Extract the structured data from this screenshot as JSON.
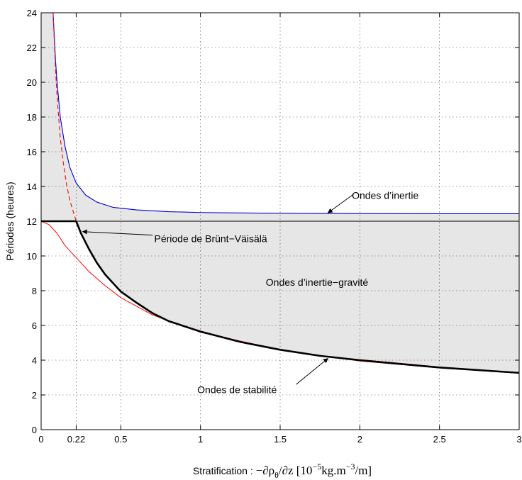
{
  "chart_data": {
    "type": "line",
    "xlabel_prefix": "Stratification : ",
    "xlabel_expr": "−∂ρ",
    "xlabel_sub": "θ",
    "xlabel_expr2": "/∂z  [10",
    "xlabel_sup1": "−5",
    "xlabel_mid": "kg.m",
    "xlabel_sup2": "−3",
    "xlabel_end": "/m]",
    "ylabel": "Périodes (heures)",
    "xlim": [
      0,
      3
    ],
    "ylim": [
      0,
      24
    ],
    "grid": true,
    "xticks": [
      {
        "value": 0,
        "label": "0"
      },
      {
        "value": 0.22,
        "label": "0.22"
      },
      {
        "value": 0.5,
        "label": "0.5"
      },
      {
        "value": 1,
        "label": "1"
      },
      {
        "value": 1.5,
        "label": "1.5"
      },
      {
        "value": 2,
        "label": "2"
      },
      {
        "value": 2.5,
        "label": "2.5"
      },
      {
        "value": 3,
        "label": "3"
      }
    ],
    "yticks": [
      {
        "value": 0,
        "label": "0"
      },
      {
        "value": 2,
        "label": "2"
      },
      {
        "value": 4,
        "label": "4"
      },
      {
        "value": 6,
        "label": "6"
      },
      {
        "value": 8,
        "label": "8"
      },
      {
        "value": 10,
        "label": "10"
      },
      {
        "value": 12,
        "label": "12"
      },
      {
        "value": 14,
        "label": "14"
      },
      {
        "value": 16,
        "label": "16"
      },
      {
        "value": 18,
        "label": "18"
      },
      {
        "value": 20,
        "label": "20"
      },
      {
        "value": 22,
        "label": "22"
      },
      {
        "value": 24,
        "label": "24"
      }
    ],
    "series": [
      {
        "style": "blue-solid",
        "color": "#0000cc",
        "x": [
          0.075,
          0.09,
          0.1,
          0.12,
          0.15,
          0.18,
          0.22,
          0.28,
          0.35,
          0.45,
          0.6,
          0.8,
          1.0,
          1.3,
          1.6,
          2.0,
          2.5,
          3.0
        ],
        "y": [
          24.0,
          21.3,
          20.0,
          18.0,
          16.3,
          15.1,
          14.2,
          13.5,
          13.1,
          12.8,
          12.65,
          12.55,
          12.5,
          12.47,
          12.45,
          12.44,
          12.43,
          12.43
        ]
      },
      {
        "style": "red-dashed",
        "color": "#ff0000",
        "x": [
          0.075,
          0.09,
          0.1,
          0.12,
          0.14,
          0.16,
          0.18,
          0.2,
          0.22
        ],
        "y": [
          24.0,
          20.8,
          19.2,
          16.8,
          15.3,
          14.1,
          13.2,
          12.6,
          12.0
        ]
      },
      {
        "style": "red-solid",
        "color": "#ff0000",
        "x": [
          0,
          0.05,
          0.1,
          0.15,
          0.22,
          0.3,
          0.4,
          0.5,
          0.7,
          1.0,
          1.5,
          2.0,
          2.5,
          3.0
        ],
        "y": [
          12.0,
          11.8,
          11.3,
          10.6,
          9.9,
          9.1,
          8.3,
          7.6,
          6.6,
          5.6,
          4.6,
          3.95,
          3.55,
          3.25
        ]
      },
      {
        "style": "black-thick",
        "color": "#000000",
        "x": [
          0,
          0.1,
          0.22,
          0.25,
          0.3,
          0.35,
          0.4,
          0.5,
          0.6,
          0.7,
          0.8,
          1.0,
          1.25,
          1.5,
          1.75,
          2.0,
          2.5,
          3.0
        ],
        "y": [
          12.0,
          12.0,
          12.0,
          11.3,
          10.4,
          9.6,
          8.95,
          7.95,
          7.3,
          6.7,
          6.25,
          5.65,
          5.05,
          4.6,
          4.25,
          4.0,
          3.58,
          3.27
        ]
      },
      {
        "style": "black-thin-horizontal",
        "color": "#000000",
        "x": [
          0,
          3
        ],
        "y": [
          12.0,
          12.0
        ]
      }
    ],
    "annotations": [
      {
        "text": "Ondes d’inertie",
        "text_x": 1.95,
        "text_y": 13.5,
        "arrow_from": [
          1.96,
          13.55
        ],
        "arrow_to": [
          1.8,
          12.48
        ]
      },
      {
        "text": "Période de Brünt−Väisälä",
        "text_x": 0.71,
        "text_y": 11.0,
        "arrow_from": [
          0.7,
          11.2
        ],
        "arrow_to": [
          0.26,
          11.4
        ]
      },
      {
        "text": "Ondes d’inertie−gravité",
        "text_x": 1.41,
        "text_y": 8.5
      },
      {
        "text": "Ondes de stabilité",
        "text_x": 0.98,
        "text_y": 2.3,
        "arrow_from": [
          1.6,
          2.6
        ],
        "arrow_to": [
          1.8,
          4.1
        ]
      }
    ]
  }
}
